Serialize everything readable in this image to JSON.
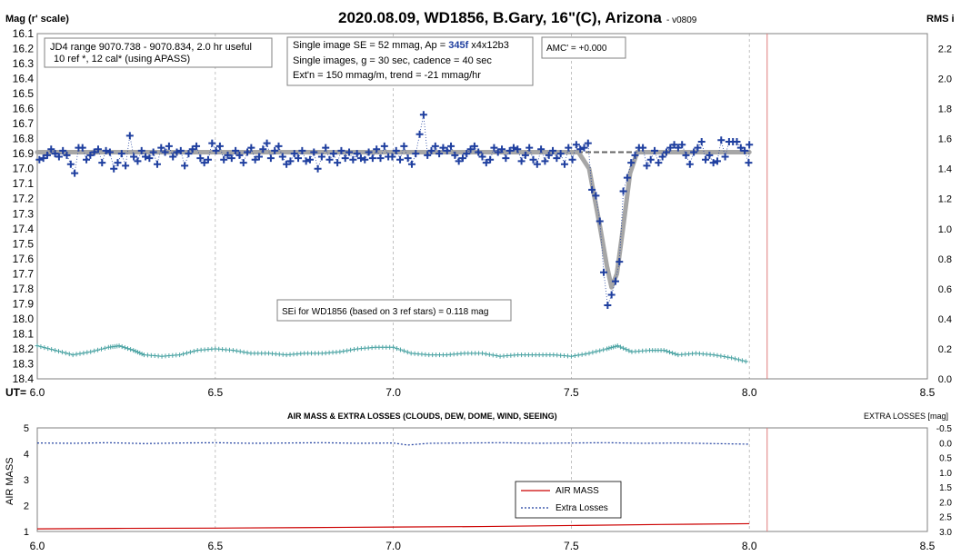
{
  "top_chart": {
    "title": "2020.08.09, WD1856, B.Gary, 16\"(C), Arizona",
    "version": "- v0809",
    "ylabel_left": "Mag (r' scale)",
    "ylabel_right": "RMS i",
    "xlabel": "UT=",
    "annotations": {
      "range_line1": "JD4 range 9070.738 - 9070.834, 2.0 hr useful",
      "range_line2": "10 ref *, 12 cal* (using APASS)",
      "se_prefix": "Single image SE = 52 mmag, Ap = ",
      "se_ap": "345f",
      "se_suffix": " x4x12b3",
      "cadence": "Single images, g = 30 sec, cadence = 40 sec",
      "extn": "Ext'n = 150 mmag/m, trend = -21 mmag/hr",
      "amc": "AMC' = +0.000",
      "sei": "SEi for WD1856 (based on 3 ref stars) = 0.118 mag"
    }
  },
  "bottom_chart": {
    "title": "AIR MASS & EXTRA LOSSES (CLOUDS, DEW, DOME, WIND, SEEING)",
    "ylabel_left": "AIR MASS",
    "ylabel_right": "EXTRA LOSSES [mag]",
    "legend": [
      "AIR MASS",
      "Extra Losses"
    ]
  },
  "colors": {
    "data_points": "#1f3f9f",
    "model": "#a6a6a6",
    "rms": "#4aa3a3",
    "vline": "#e07b7b",
    "airmass": "#cc0000",
    "losses": "#1f3f9f",
    "grid": "#b4b4b4"
  },
  "chart_data": [
    {
      "type": "scatter",
      "title": "2020.08.09, WD1856, B.Gary, 16\"(C), Arizona",
      "xlabel": "UT=",
      "ylabel": "Mag (r' scale)",
      "y2label": "RMS i",
      "xlim": [
        6.0,
        8.5
      ],
      "ylim": [
        18.4,
        16.1
      ],
      "y2lim": [
        0.0,
        2.3
      ],
      "xticks": [
        6.0,
        6.5,
        7.0,
        7.5,
        8.0,
        8.5
      ],
      "yticks": [
        16.1,
        16.2,
        16.3,
        16.4,
        16.5,
        16.6,
        16.7,
        16.8,
        16.9,
        17.0,
        17.1,
        17.2,
        17.3,
        17.4,
        17.5,
        17.6,
        17.7,
        17.8,
        17.9,
        18.0,
        18.1,
        18.2,
        18.3,
        18.4
      ],
      "y2ticks": [
        0.0,
        0.2,
        0.4,
        0.6,
        0.8,
        1.0,
        1.2,
        1.4,
        1.6,
        1.8,
        2.0,
        2.2
      ],
      "baseline_mag": 16.89,
      "vertical_line_x": 8.05,
      "grid": true,
      "series": [
        {
          "name": "",
          "values": [
            [
              6.006,
              16.94
            ],
            [
              6.017,
              16.93
            ],
            [
              6.028,
              16.91
            ],
            [
              6.039,
              16.87
            ],
            [
              6.05,
              16.9
            ],
            [
              6.061,
              16.92
            ],
            [
              6.072,
              16.88
            ],
            [
              6.083,
              16.91
            ],
            [
              6.094,
              16.97
            ],
            [
              6.105,
              17.03
            ],
            [
              6.116,
              16.86
            ],
            [
              6.127,
              16.86
            ],
            [
              6.138,
              16.94
            ],
            [
              6.149,
              16.91
            ],
            [
              6.16,
              16.89
            ],
            [
              6.171,
              16.87
            ],
            [
              6.182,
              16.96
            ],
            [
              6.193,
              16.88
            ],
            [
              6.204,
              16.89
            ],
            [
              6.215,
              17.0
            ],
            [
              6.226,
              16.96
            ],
            [
              6.237,
              16.9
            ],
            [
              6.248,
              16.98
            ],
            [
              6.26,
              16.78
            ],
            [
              6.271,
              16.92
            ],
            [
              6.282,
              16.95
            ],
            [
              6.293,
              16.88
            ],
            [
              6.304,
              16.92
            ],
            [
              6.315,
              16.93
            ],
            [
              6.326,
              16.89
            ],
            [
              6.337,
              16.97
            ],
            [
              6.348,
              16.86
            ],
            [
              6.359,
              16.89
            ],
            [
              6.37,
              16.85
            ],
            [
              6.381,
              16.92
            ],
            [
              6.392,
              16.89
            ],
            [
              6.403,
              16.88
            ],
            [
              6.414,
              16.98
            ],
            [
              6.425,
              16.9
            ],
            [
              6.436,
              16.87
            ],
            [
              6.447,
              16.85
            ],
            [
              6.458,
              16.93
            ],
            [
              6.469,
              16.96
            ],
            [
              6.48,
              16.94
            ],
            [
              6.491,
              16.83
            ],
            [
              6.502,
              16.88
            ],
            [
              6.513,
              16.85
            ],
            [
              6.524,
              16.94
            ],
            [
              6.535,
              16.91
            ],
            [
              6.546,
              16.93
            ],
            [
              6.557,
              16.88
            ],
            [
              6.568,
              16.91
            ],
            [
              6.579,
              16.96
            ],
            [
              6.59,
              16.89
            ],
            [
              6.601,
              16.86
            ],
            [
              6.612,
              16.94
            ],
            [
              6.623,
              16.92
            ],
            [
              6.634,
              16.87
            ],
            [
              6.645,
              16.83
            ],
            [
              6.656,
              16.93
            ],
            [
              6.667,
              16.88
            ],
            [
              6.678,
              16.85
            ],
            [
              6.689,
              16.92
            ],
            [
              6.7,
              16.97
            ],
            [
              6.711,
              16.95
            ],
            [
              6.722,
              16.9
            ],
            [
              6.733,
              16.93
            ],
            [
              6.744,
              16.88
            ],
            [
              6.755,
              16.95
            ],
            [
              6.766,
              16.94
            ],
            [
              6.777,
              16.89
            ],
            [
              6.788,
              17.0
            ],
            [
              6.799,
              16.92
            ],
            [
              6.81,
              16.86
            ],
            [
              6.821,
              16.94
            ],
            [
              6.832,
              16.9
            ],
            [
              6.843,
              16.96
            ],
            [
              6.854,
              16.88
            ],
            [
              6.865,
              16.93
            ],
            [
              6.876,
              16.89
            ],
            [
              6.887,
              16.94
            ],
            [
              6.898,
              16.9
            ],
            [
              6.909,
              16.93
            ],
            [
              6.92,
              16.94
            ],
            [
              6.931,
              16.89
            ],
            [
              6.942,
              16.93
            ],
            [
              6.953,
              16.87
            ],
            [
              6.964,
              16.93
            ],
            [
              6.975,
              16.85
            ],
            [
              6.986,
              16.92
            ],
            [
              6.997,
              16.92
            ],
            [
              7.008,
              16.88
            ],
            [
              7.019,
              16.94
            ],
            [
              7.03,
              16.85
            ],
            [
              7.041,
              16.93
            ],
            [
              7.052,
              16.97
            ],
            [
              7.063,
              16.9
            ],
            [
              7.074,
              16.77
            ],
            [
              7.085,
              16.64
            ],
            [
              7.096,
              16.91
            ],
            [
              7.107,
              16.88
            ],
            [
              7.118,
              16.85
            ],
            [
              7.129,
              16.9
            ],
            [
              7.14,
              16.86
            ],
            [
              7.151,
              16.88
            ],
            [
              7.162,
              16.85
            ],
            [
              7.173,
              16.91
            ],
            [
              7.184,
              16.95
            ],
            [
              7.195,
              16.93
            ],
            [
              7.206,
              16.9
            ],
            [
              7.217,
              16.87
            ],
            [
              7.228,
              16.85
            ],
            [
              7.239,
              16.89
            ],
            [
              7.25,
              16.92
            ],
            [
              7.261,
              16.96
            ],
            [
              7.272,
              16.94
            ],
            [
              7.283,
              16.86
            ],
            [
              7.294,
              16.89
            ],
            [
              7.305,
              16.87
            ],
            [
              7.316,
              16.93
            ],
            [
              7.327,
              16.88
            ],
            [
              7.338,
              16.86
            ],
            [
              7.349,
              16.87
            ],
            [
              7.36,
              16.95
            ],
            [
              7.371,
              16.91
            ],
            [
              7.382,
              16.86
            ],
            [
              7.393,
              16.94
            ],
            [
              7.404,
              16.97
            ],
            [
              7.415,
              16.87
            ],
            [
              7.426,
              16.95
            ],
            [
              7.437,
              16.91
            ],
            [
              7.448,
              16.88
            ],
            [
              7.459,
              16.93
            ],
            [
              7.47,
              16.9
            ],
            [
              7.481,
              16.97
            ],
            [
              7.492,
              16.86
            ],
            [
              7.503,
              16.94
            ],
            [
              7.514,
              16.84
            ],
            [
              7.525,
              16.87
            ],
            [
              7.536,
              16.86
            ],
            [
              7.547,
              16.83
            ],
            [
              7.558,
              17.14
            ],
            [
              7.569,
              17.18
            ],
            [
              7.58,
              17.35
            ],
            [
              7.591,
              17.69
            ],
            [
              7.602,
              17.91
            ],
            [
              7.613,
              17.84
            ],
            [
              7.624,
              17.75
            ],
            [
              7.635,
              17.62
            ],
            [
              7.646,
              17.15
            ],
            [
              7.657,
              17.06
            ],
            [
              7.668,
              16.96
            ],
            [
              7.679,
              16.91
            ],
            [
              7.69,
              16.86
            ],
            [
              7.701,
              16.86
            ],
            [
              7.712,
              16.98
            ],
            [
              7.723,
              16.94
            ],
            [
              7.734,
              16.88
            ],
            [
              7.745,
              16.96
            ],
            [
              7.756,
              16.92
            ],
            [
              7.767,
              16.89
            ],
            [
              7.778,
              16.86
            ],
            [
              7.789,
              16.84
            ],
            [
              7.8,
              16.86
            ],
            [
              7.811,
              16.84
            ],
            [
              7.822,
              16.91
            ],
            [
              7.833,
              16.97
            ],
            [
              7.844,
              16.89
            ],
            [
              7.855,
              16.86
            ],
            [
              7.866,
              16.82
            ],
            [
              7.877,
              16.94
            ],
            [
              7.888,
              16.91
            ],
            [
              7.899,
              16.96
            ],
            [
              7.91,
              16.95
            ],
            [
              7.921,
              16.81
            ],
            [
              7.932,
              16.92
            ],
            [
              7.943,
              16.82
            ],
            [
              7.954,
              16.82
            ],
            [
              7.965,
              16.82
            ],
            [
              7.976,
              16.86
            ],
            [
              7.987,
              16.88
            ],
            [
              7.998,
              16.96
            ],
            [
              8.0,
              16.84
            ]
          ]
        }
      ],
      "model_curve": [
        [
          6.0,
          16.89
        ],
        [
          7.52,
          16.89
        ],
        [
          7.55,
          17.0
        ],
        [
          7.58,
          17.38
        ],
        [
          7.6,
          17.65
        ],
        [
          7.613,
          17.79
        ],
        [
          7.628,
          17.7
        ],
        [
          7.645,
          17.4
        ],
        [
          7.665,
          17.03
        ],
        [
          7.685,
          16.89
        ],
        [
          8.0,
          16.89
        ]
      ],
      "rms_curve": [
        [
          6.0,
          0.22
        ],
        [
          6.05,
          0.19
        ],
        [
          6.1,
          0.16
        ],
        [
          6.15,
          0.18
        ],
        [
          6.2,
          0.21
        ],
        [
          6.23,
          0.22
        ],
        [
          6.27,
          0.19
        ],
        [
          6.3,
          0.16
        ],
        [
          6.35,
          0.15
        ],
        [
          6.4,
          0.16
        ],
        [
          6.45,
          0.19
        ],
        [
          6.5,
          0.2
        ],
        [
          6.55,
          0.19
        ],
        [
          6.6,
          0.17
        ],
        [
          6.65,
          0.17
        ],
        [
          6.7,
          0.16
        ],
        [
          6.75,
          0.17
        ],
        [
          6.8,
          0.17
        ],
        [
          6.85,
          0.18
        ],
        [
          6.9,
          0.2
        ],
        [
          6.95,
          0.21
        ],
        [
          7.0,
          0.21
        ],
        [
          7.05,
          0.17
        ],
        [
          7.1,
          0.16
        ],
        [
          7.15,
          0.16
        ],
        [
          7.2,
          0.17
        ],
        [
          7.25,
          0.17
        ],
        [
          7.3,
          0.15
        ],
        [
          7.35,
          0.16
        ],
        [
          7.4,
          0.16
        ],
        [
          7.45,
          0.16
        ],
        [
          7.5,
          0.15
        ],
        [
          7.55,
          0.17
        ],
        [
          7.6,
          0.2
        ],
        [
          7.63,
          0.22
        ],
        [
          7.67,
          0.18
        ],
        [
          7.72,
          0.19
        ],
        [
          7.76,
          0.19
        ],
        [
          7.8,
          0.16
        ],
        [
          7.85,
          0.17
        ],
        [
          7.9,
          0.16
        ],
        [
          7.95,
          0.14
        ],
        [
          8.0,
          0.11
        ]
      ]
    },
    {
      "type": "line",
      "title": "AIR MASS & EXTRA LOSSES (CLOUDS, DEW, DOME, WIND, SEEING)",
      "xlabel": "",
      "ylabel": "AIR MASS",
      "y2label": "EXTRA LOSSES [mag]",
      "xlim": [
        6.0,
        8.5
      ],
      "ylim": [
        1,
        5
      ],
      "y2lim": [
        3.0,
        -0.5
      ],
      "xticks": [
        6.0,
        6.5,
        7.0,
        7.5,
        8.0,
        8.5
      ],
      "yticks": [
        1,
        2,
        3,
        4,
        5
      ],
      "y2ticks": [
        -0.5,
        0.0,
        0.5,
        1.0,
        1.5,
        2.0,
        2.5,
        3.0
      ],
      "legend_position": "center-right",
      "series": [
        {
          "name": "AIR MASS",
          "x": [
            6.0,
            6.25,
            6.5,
            6.75,
            7.0,
            7.25,
            7.5,
            7.75,
            8.0
          ],
          "values": [
            1.1,
            1.12,
            1.13,
            1.15,
            1.17,
            1.19,
            1.23,
            1.27,
            1.3
          ]
        },
        {
          "name": "Extra Losses",
          "x": [
            6.0,
            6.1,
            6.2,
            6.3,
            6.4,
            6.5,
            6.6,
            6.7,
            6.8,
            6.9,
            7.0,
            7.04,
            7.1,
            7.2,
            7.3,
            7.4,
            7.5,
            7.6,
            7.7,
            7.8,
            7.9,
            8.0
          ],
          "values": [
            0.01,
            0.02,
            0.0,
            0.03,
            0.01,
            0.0,
            0.02,
            0.01,
            0.0,
            0.02,
            0.01,
            0.08,
            0.02,
            0.01,
            0.0,
            0.02,
            0.01,
            0.0,
            0.02,
            0.01,
            0.03,
            0.05
          ]
        }
      ]
    }
  ]
}
